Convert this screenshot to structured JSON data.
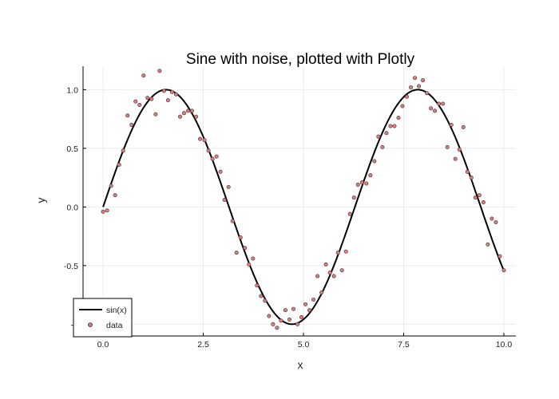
{
  "chart_data": {
    "type": "scatter",
    "title": "Sine with noise, plotted with Plotly",
    "xlabel": "x",
    "ylabel": "y",
    "xlim": [
      -0.5,
      10.3
    ],
    "ylim": [
      -1.1,
      1.2
    ],
    "xticks": [
      0,
      2.5,
      5,
      7.5,
      10
    ],
    "xtick_labels": [
      "0.0",
      "2.5",
      "5.0",
      "7.5",
      "10.0"
    ],
    "yticks": [
      -1,
      -0.5,
      0,
      0.5,
      1
    ],
    "ytick_labels": [
      "-1",
      "-0.5",
      "0.0",
      "0.5",
      "1.0"
    ],
    "grid": true,
    "legend_position": "bottom-left",
    "series": [
      {
        "name": "sin(x)",
        "kind": "line",
        "color": "#000000",
        "function": "sin",
        "x_range": [
          0,
          10
        ]
      },
      {
        "name": "data",
        "kind": "markers",
        "color": "#e07b7b",
        "x": [
          0.0,
          0.1,
          0.2,
          0.3,
          0.4,
          0.5,
          0.61,
          0.71,
          0.81,
          0.91,
          1.01,
          1.11,
          1.21,
          1.31,
          1.41,
          1.52,
          1.62,
          1.72,
          1.82,
          1.92,
          2.02,
          2.12,
          2.22,
          2.32,
          2.42,
          2.53,
          2.63,
          2.73,
          2.83,
          2.93,
          3.03,
          3.13,
          3.23,
          3.33,
          3.43,
          3.54,
          3.64,
          3.74,
          3.84,
          3.94,
          4.04,
          4.14,
          4.24,
          4.34,
          4.44,
          4.55,
          4.65,
          4.75,
          4.85,
          4.95,
          5.05,
          5.15,
          5.25,
          5.35,
          5.45,
          5.56,
          5.66,
          5.76,
          5.86,
          5.96,
          6.06,
          6.16,
          6.26,
          6.36,
          6.46,
          6.57,
          6.67,
          6.77,
          6.87,
          6.97,
          7.07,
          7.17,
          7.27,
          7.37,
          7.47,
          7.58,
          7.68,
          7.78,
          7.88,
          7.98,
          8.08,
          8.18,
          8.28,
          8.38,
          8.48,
          8.59,
          8.69,
          8.79,
          8.89,
          8.99,
          9.09,
          9.19,
          9.29,
          9.39,
          9.49,
          9.6,
          9.7,
          9.8,
          9.9,
          10.0
        ],
        "y": [
          -0.04,
          -0.03,
          0.18,
          0.1,
          0.36,
          0.48,
          0.78,
          0.7,
          0.9,
          0.87,
          1.12,
          0.93,
          0.92,
          0.79,
          1.16,
          0.99,
          0.91,
          0.98,
          0.96,
          0.77,
          0.8,
          0.82,
          0.82,
          0.77,
          0.58,
          0.57,
          0.48,
          0.41,
          0.43,
          0.3,
          0.06,
          0.17,
          -0.12,
          -0.39,
          -0.26,
          -0.35,
          -0.49,
          -0.44,
          -0.67,
          -0.76,
          -0.8,
          -0.93,
          -1.0,
          -1.03,
          -0.97,
          -0.88,
          -0.96,
          -0.87,
          -1.0,
          -0.94,
          -0.83,
          -0.88,
          -0.79,
          -0.59,
          -0.73,
          -0.49,
          -0.56,
          -0.59,
          -0.39,
          -0.54,
          -0.38,
          -0.06,
          0.08,
          0.19,
          0.21,
          0.2,
          0.27,
          0.39,
          0.6,
          0.51,
          0.63,
          0.69,
          0.69,
          0.76,
          0.86,
          0.94,
          1.02,
          1.1,
          1.03,
          1.08,
          0.97,
          0.84,
          0.82,
          0.88,
          0.88,
          0.51,
          0.7,
          0.41,
          0.49,
          0.68,
          0.3,
          0.25,
          0.08,
          0.1,
          0.04,
          -0.32,
          -0.1,
          -0.13,
          -0.42,
          -0.54
        ]
      }
    ]
  }
}
